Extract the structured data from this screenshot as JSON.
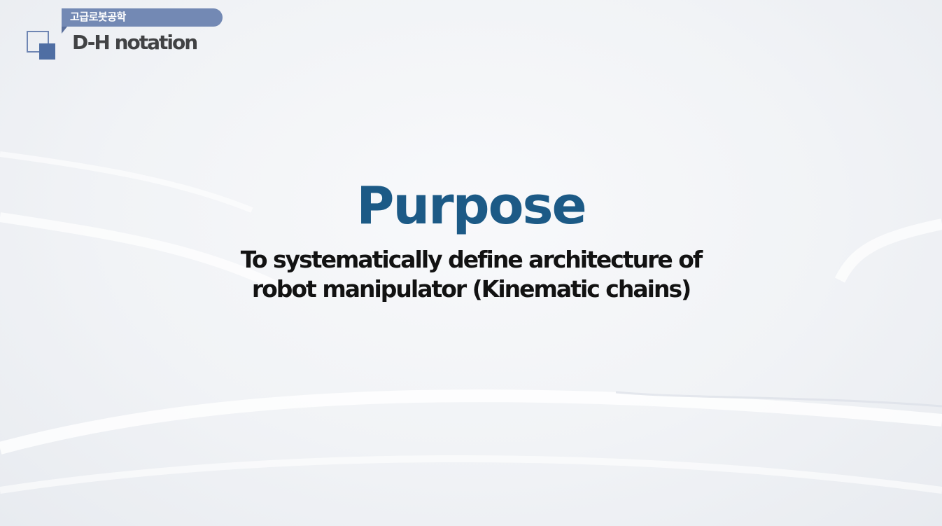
{
  "header": {
    "course_label": "고급로봇공학",
    "section_title": "D-H notation"
  },
  "slide": {
    "heading": "Purpose",
    "description_line1": "To systematically define architecture of",
    "description_line2": "robot manipulator  (Kinematic chains)"
  },
  "colors": {
    "heading": "#1c5a86",
    "badge": "#7389b4",
    "logo": "#4f6ea3",
    "text": "#121212"
  }
}
